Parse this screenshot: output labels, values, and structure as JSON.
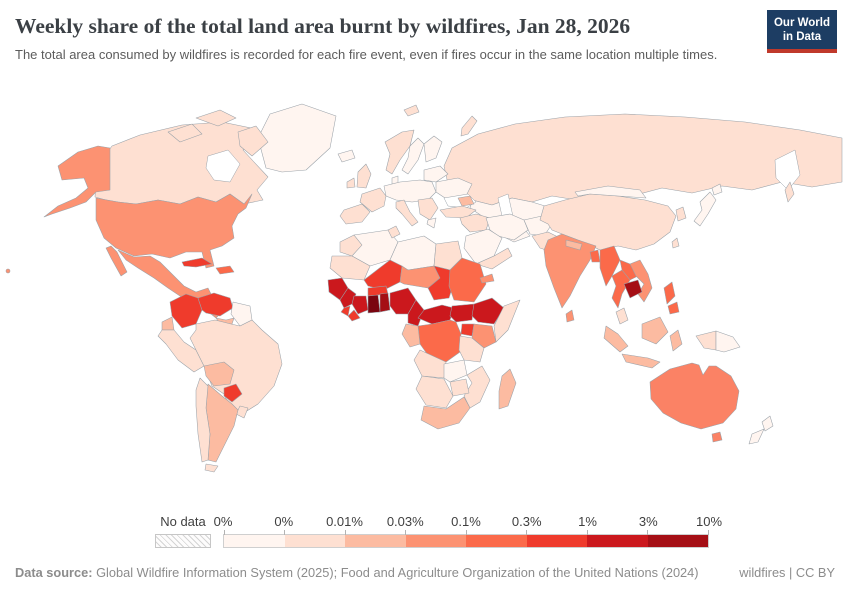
{
  "header": {
    "title": "Weekly share of the total land area burnt by wildfires, Jan 28, 2026",
    "subtitle": "The total area consumed by wildfires is recorded for each fire event, even if fires occur in the same location multiple times.",
    "logo": {
      "line1": "Our World",
      "line2": "in Data",
      "bg": "#1d3d63",
      "accent": "#c0392b"
    }
  },
  "legend": {
    "no_data_label": "No data",
    "tick_labels": [
      "0%",
      "0%",
      "0.01%",
      "0.03%",
      "0.1%",
      "0.3%",
      "1%",
      "3%",
      "10%"
    ],
    "colors": [
      "#fff5f0",
      "#fee0d2",
      "#fcbba1",
      "#fc9272",
      "#fb6a4a",
      "#ef3b2c",
      "#cb181d",
      "#a50f15"
    ]
  },
  "footer": {
    "source_label": "Data source:",
    "source_text": " Global Wildfire Information System (2025); Food and Agriculture Organization of the United Nations (2024)",
    "license": "wildfires | CC BY"
  },
  "chart_data": {
    "type": "choropleth-map",
    "title": "Weekly share of the total land area burnt by wildfires",
    "date": "Jan 28, 2026",
    "unit": "% of total land area",
    "legend_position": "bottom",
    "bins": [
      {
        "range": "0%",
        "color": "#fff5f0"
      },
      {
        "range": "0–0.01%",
        "color": "#fee0d2"
      },
      {
        "range": "0.01–0.03%",
        "color": "#fcbba1"
      },
      {
        "range": "0.03–0.1%",
        "color": "#fc9272"
      },
      {
        "range": "0.1–0.3%",
        "color": "#fb6a4a"
      },
      {
        "range": "0.3–1%",
        "color": "#ef3b2c"
      },
      {
        "range": "1–3%",
        "color": "#cb181d"
      },
      {
        "range": "3–10%",
        "color": "#a50f15"
      }
    ],
    "regions": [
      {
        "id": "greenland",
        "name": "Greenland",
        "value": "0%",
        "color": "#fff5f0"
      },
      {
        "id": "canada",
        "name": "Canada",
        "value": "0–0.01%",
        "color": "#fee0d2"
      },
      {
        "id": "alaska",
        "name": "United States (Alaska)",
        "value": "0.03–0.1%",
        "color": "#fc9272"
      },
      {
        "id": "usa",
        "name": "United States",
        "value": "0.03–0.1%",
        "color": "#fc9272"
      },
      {
        "id": "hawaii",
        "name": "United States (Hawaii)",
        "value": "0.03–0.1%",
        "color": "#fc9272"
      },
      {
        "id": "mexico",
        "name": "Mexico",
        "value": "0.03–0.1%",
        "color": "#fc9272"
      },
      {
        "id": "central-america",
        "name": "Guatemala, Honduras & Nicaragua",
        "value": "0.03–0.1%",
        "color": "#fc9272"
      },
      {
        "id": "panama-costa-rica",
        "name": "Costa Rica & Panama",
        "value": "0.01–0.03%",
        "color": "#fcbba1"
      },
      {
        "id": "cuba",
        "name": "Cuba",
        "value": "0.3–1%",
        "color": "#ef3b2c"
      },
      {
        "id": "hispaniola",
        "name": "Haiti & Dominican Republic",
        "value": "0.1–0.3%",
        "color": "#fb6a4a"
      },
      {
        "id": "colombia",
        "name": "Colombia",
        "value": "0.3–1%",
        "color": "#ef3b2c"
      },
      {
        "id": "venezuela",
        "name": "Venezuela",
        "value": "0.3–1%",
        "color": "#ef3b2c"
      },
      {
        "id": "guianas",
        "name": "Guyana & Suriname",
        "value": "0%",
        "color": "#fff5f0"
      },
      {
        "id": "ecuador",
        "name": "Ecuador",
        "value": "0.01–0.03%",
        "color": "#fcbba1"
      },
      {
        "id": "peru",
        "name": "Peru",
        "value": "0–0.01%",
        "color": "#fee0d2"
      },
      {
        "id": "brazil",
        "name": "Brazil",
        "value": "0–0.01%",
        "color": "#fee0d2"
      },
      {
        "id": "bolivia",
        "name": "Bolivia",
        "value": "0.01–0.03%",
        "color": "#fcbba1"
      },
      {
        "id": "paraguay",
        "name": "Paraguay",
        "value": "0.3–1%",
        "color": "#ef3b2c"
      },
      {
        "id": "uruguay",
        "name": "Uruguay",
        "value": "0–0.01%",
        "color": "#fee0d2"
      },
      {
        "id": "argentina",
        "name": "Argentina",
        "value": "0.01–0.03%",
        "color": "#fcbba1"
      },
      {
        "id": "chile",
        "name": "Chile",
        "value": "0–0.01%",
        "color": "#fee0d2"
      },
      {
        "id": "iceland",
        "name": "Iceland",
        "value": "0%",
        "color": "#fff5f0"
      },
      {
        "id": "ireland",
        "name": "Ireland",
        "value": "0–0.01%",
        "color": "#fee0d2"
      },
      {
        "id": "uk",
        "name": "United Kingdom",
        "value": "0–0.01%",
        "color": "#fee0d2"
      },
      {
        "id": "norway",
        "name": "Norway",
        "value": "0–0.01%",
        "color": "#fee0d2"
      },
      {
        "id": "sweden",
        "name": "Sweden",
        "value": "0%",
        "color": "#fff5f0"
      },
      {
        "id": "finland",
        "name": "Finland",
        "value": "0%",
        "color": "#fff5f0"
      },
      {
        "id": "denmark",
        "name": "Denmark",
        "value": "0%",
        "color": "#fff5f0"
      },
      {
        "id": "central-europe",
        "name": "Germany, Poland & Central Europe",
        "value": "0%",
        "color": "#fff5f0"
      },
      {
        "id": "france",
        "name": "France",
        "value": "0–0.01%",
        "color": "#fee0d2"
      },
      {
        "id": "iberia",
        "name": "Spain & Portugal",
        "value": "0–0.01%",
        "color": "#fee0d2"
      },
      {
        "id": "italy",
        "name": "Italy",
        "value": "0–0.01%",
        "color": "#fee0d2"
      },
      {
        "id": "balkans",
        "name": "Balkans",
        "value": "0–0.01%",
        "color": "#fee0d2"
      },
      {
        "id": "greece",
        "name": "Greece",
        "value": "0%",
        "color": "#fff5f0"
      },
      {
        "id": "ukraine",
        "name": "Ukraine",
        "value": "0%",
        "color": "#fff5f0"
      },
      {
        "id": "belarus-baltics",
        "name": "Belarus & Baltics",
        "value": "0%",
        "color": "#fff5f0"
      },
      {
        "id": "russia",
        "name": "Russia",
        "value": "0–0.01%",
        "color": "#fee0d2"
      },
      {
        "id": "svalbard",
        "name": "Svalbard",
        "value": "0–0.01%",
        "color": "#fee0d2"
      },
      {
        "id": "kazakhstan",
        "name": "Kazakhstan",
        "value": "0%",
        "color": "#fff5f0"
      },
      {
        "id": "central-asia",
        "name": "Uzbekistan & Turkmenistan",
        "value": "0%",
        "color": "#fff5f0"
      },
      {
        "id": "caucasus",
        "name": "Caucasus",
        "value": "0.01–0.03%",
        "color": "#fcbba1"
      },
      {
        "id": "turkey",
        "name": "Turkey",
        "value": "0–0.01%",
        "color": "#fee0d2"
      },
      {
        "id": "levant-iraq",
        "name": "Iraq & Levant",
        "value": "0–0.01%",
        "color": "#fee0d2"
      },
      {
        "id": "saudi-arabia",
        "name": "Saudi Arabia",
        "value": "0%",
        "color": "#fff5f0"
      },
      {
        "id": "yemen-oman",
        "name": "Yemen & Oman",
        "value": "0–0.01%",
        "color": "#fee0d2"
      },
      {
        "id": "iran",
        "name": "Iran",
        "value": "0%",
        "color": "#fff5f0"
      },
      {
        "id": "afghanistan",
        "name": "Afghanistan",
        "value": "0%",
        "color": "#fff5f0"
      },
      {
        "id": "pakistan",
        "name": "Pakistan",
        "value": "0–0.01%",
        "color": "#fee0d2"
      },
      {
        "id": "india",
        "name": "India",
        "value": "0.03–0.1%",
        "color": "#fc9272"
      },
      {
        "id": "nepal",
        "name": "Nepal",
        "value": "0.01–0.03%",
        "color": "#fcbba1"
      },
      {
        "id": "bangladesh",
        "name": "Bangladesh",
        "value": "0.1–0.3%",
        "color": "#fb6a4a"
      },
      {
        "id": "sri-lanka",
        "name": "Sri Lanka",
        "value": "0.03–0.1%",
        "color": "#fc9272"
      },
      {
        "id": "china",
        "name": "China",
        "value": "0–0.01%",
        "color": "#fee0d2"
      },
      {
        "id": "mongolia",
        "name": "Mongolia",
        "value": "0%",
        "color": "#fff5f0"
      },
      {
        "id": "korea",
        "name": "South Korea",
        "value": "0–0.01%",
        "color": "#fee0d2"
      },
      {
        "id": "japan",
        "name": "Japan",
        "value": "0%",
        "color": "#fff5f0"
      },
      {
        "id": "taiwan",
        "name": "Taiwan",
        "value": "0–0.01%",
        "color": "#fee0d2"
      },
      {
        "id": "myanmar",
        "name": "Myanmar",
        "value": "0.1–0.3%",
        "color": "#fb6a4a"
      },
      {
        "id": "thailand",
        "name": "Thailand",
        "value": "0.1–0.3%",
        "color": "#fb6a4a"
      },
      {
        "id": "laos",
        "name": "Laos",
        "value": "0.1–0.3%",
        "color": "#fb6a4a"
      },
      {
        "id": "cambodia",
        "name": "Cambodia",
        "value": "3–10%",
        "color": "#a50f15"
      },
      {
        "id": "vietnam",
        "name": "Vietnam",
        "value": "0.03–0.1%",
        "color": "#fc9272"
      },
      {
        "id": "malaysia",
        "name": "Malaysia",
        "value": "0–0.01%",
        "color": "#fee0d2"
      },
      {
        "id": "indonesia",
        "name": "Indonesia",
        "value": "0.01–0.03%",
        "color": "#fcbba1"
      },
      {
        "id": "papua-indonesia",
        "name": "Indonesia (Papua)",
        "value": "0–0.01%",
        "color": "#fee0d2"
      },
      {
        "id": "png",
        "name": "Papua New Guinea",
        "value": "0%",
        "color": "#fff5f0"
      },
      {
        "id": "philippines",
        "name": "Philippines",
        "value": "0.1–0.3%",
        "color": "#fb6a4a"
      },
      {
        "id": "australia",
        "name": "Australia",
        "value": "0.1–0.3%",
        "color": "#fb8265"
      },
      {
        "id": "new-zealand",
        "name": "New Zealand",
        "value": "0%",
        "color": "#fff5f0"
      },
      {
        "id": "morocco",
        "name": "Morocco",
        "value": "0–0.01%",
        "color": "#fee0d2"
      },
      {
        "id": "algeria",
        "name": "Algeria",
        "value": "0%",
        "color": "#fff5f0"
      },
      {
        "id": "tunisia",
        "name": "Tunisia",
        "value": "0–0.01%",
        "color": "#fee0d2"
      },
      {
        "id": "libya",
        "name": "Libya",
        "value": "0%",
        "color": "#fff5f0"
      },
      {
        "id": "egypt",
        "name": "Egypt",
        "value": "0–0.01%",
        "color": "#fee0d2"
      },
      {
        "id": "mauritania",
        "name": "Mauritania",
        "value": "0–0.01%",
        "color": "#fee0d2"
      },
      {
        "id": "senegal",
        "name": "Senegal & Gambia",
        "value": "1–3%",
        "color": "#cb181d"
      },
      {
        "id": "mali",
        "name": "Mali",
        "value": "0.3–1%",
        "color": "#ef3b2c"
      },
      {
        "id": "burkina-faso",
        "name": "Burkina Faso",
        "value": "0.3–1%",
        "color": "#ef3b2c"
      },
      {
        "id": "niger",
        "name": "Niger",
        "value": "0.03–0.1%",
        "color": "#fc9272"
      },
      {
        "id": "chad",
        "name": "Chad",
        "value": "0.3–1%",
        "color": "#ef3b2c"
      },
      {
        "id": "sudan",
        "name": "Sudan",
        "value": "0.1–0.3%",
        "color": "#fb6a4a"
      },
      {
        "id": "eritrea",
        "name": "Eritrea",
        "value": "0.03–0.1%",
        "color": "#fc9272"
      },
      {
        "id": "guinea",
        "name": "Guinea",
        "value": "1–3%",
        "color": "#cb181d"
      },
      {
        "id": "sierra-leone",
        "name": "Sierra Leone",
        "value": "0.3–1%",
        "color": "#ef3b2c"
      },
      {
        "id": "liberia",
        "name": "Liberia",
        "value": "0.3–1%",
        "color": "#ef3b2c"
      },
      {
        "id": "ivory-coast",
        "name": "Côte d'Ivoire",
        "value": "1–3%",
        "color": "#cb181d"
      },
      {
        "id": "ghana",
        "name": "Ghana",
        "value": "3–10%",
        "color": "#7a0510"
      },
      {
        "id": "togo-benin",
        "name": "Togo & Benin",
        "value": "3–10%",
        "color": "#a50f15"
      },
      {
        "id": "nigeria",
        "name": "Nigeria",
        "value": "1–3%",
        "color": "#cb181d"
      },
      {
        "id": "cameroon",
        "name": "Cameroon",
        "value": "1–3%",
        "color": "#cb181d"
      },
      {
        "id": "car",
        "name": "Central African Republic",
        "value": "1–3%",
        "color": "#cb181d"
      },
      {
        "id": "south-sudan",
        "name": "South Sudan",
        "value": "1–3%",
        "color": "#cb181d"
      },
      {
        "id": "ethiopia",
        "name": "Ethiopia",
        "value": "1–3%",
        "color": "#cb181d"
      },
      {
        "id": "somalia",
        "name": "Somalia",
        "value": "0–0.01%",
        "color": "#fee0d2"
      },
      {
        "id": "uganda",
        "name": "Uganda",
        "value": "0.3–1%",
        "color": "#ef3b2c"
      },
      {
        "id": "kenya",
        "name": "Kenya",
        "value": "0.03–0.1%",
        "color": "#fc9272"
      },
      {
        "id": "drc",
        "name": "Democratic Republic of Congo",
        "value": "0.1–0.3%",
        "color": "#fb6a4a"
      },
      {
        "id": "congo-gabon",
        "name": "Congo & Gabon",
        "value": "0.01–0.03%",
        "color": "#fcbba1"
      },
      {
        "id": "tanzania",
        "name": "Tanzania",
        "value": "0–0.01%",
        "color": "#fee0d2"
      },
      {
        "id": "angola",
        "name": "Angola",
        "value": "0–0.01%",
        "color": "#fee0d2"
      },
      {
        "id": "zambia",
        "name": "Zambia",
        "value": "0%",
        "color": "#fff5f0"
      },
      {
        "id": "mozambique",
        "name": "Mozambique",
        "value": "0–0.01%",
        "color": "#fee0d2"
      },
      {
        "id": "zimbabwe",
        "name": "Zimbabwe",
        "value": "0–0.01%",
        "color": "#fee0d2"
      },
      {
        "id": "namibia-botswana",
        "name": "Namibia & Botswana",
        "value": "0–0.01%",
        "color": "#fee0d2"
      },
      {
        "id": "south-africa",
        "name": "South Africa",
        "value": "0.01–0.03%",
        "color": "#fcbba1"
      },
      {
        "id": "madagascar",
        "name": "Madagascar",
        "value": "0.01–0.03%",
        "color": "#fcbba1"
      }
    ]
  }
}
